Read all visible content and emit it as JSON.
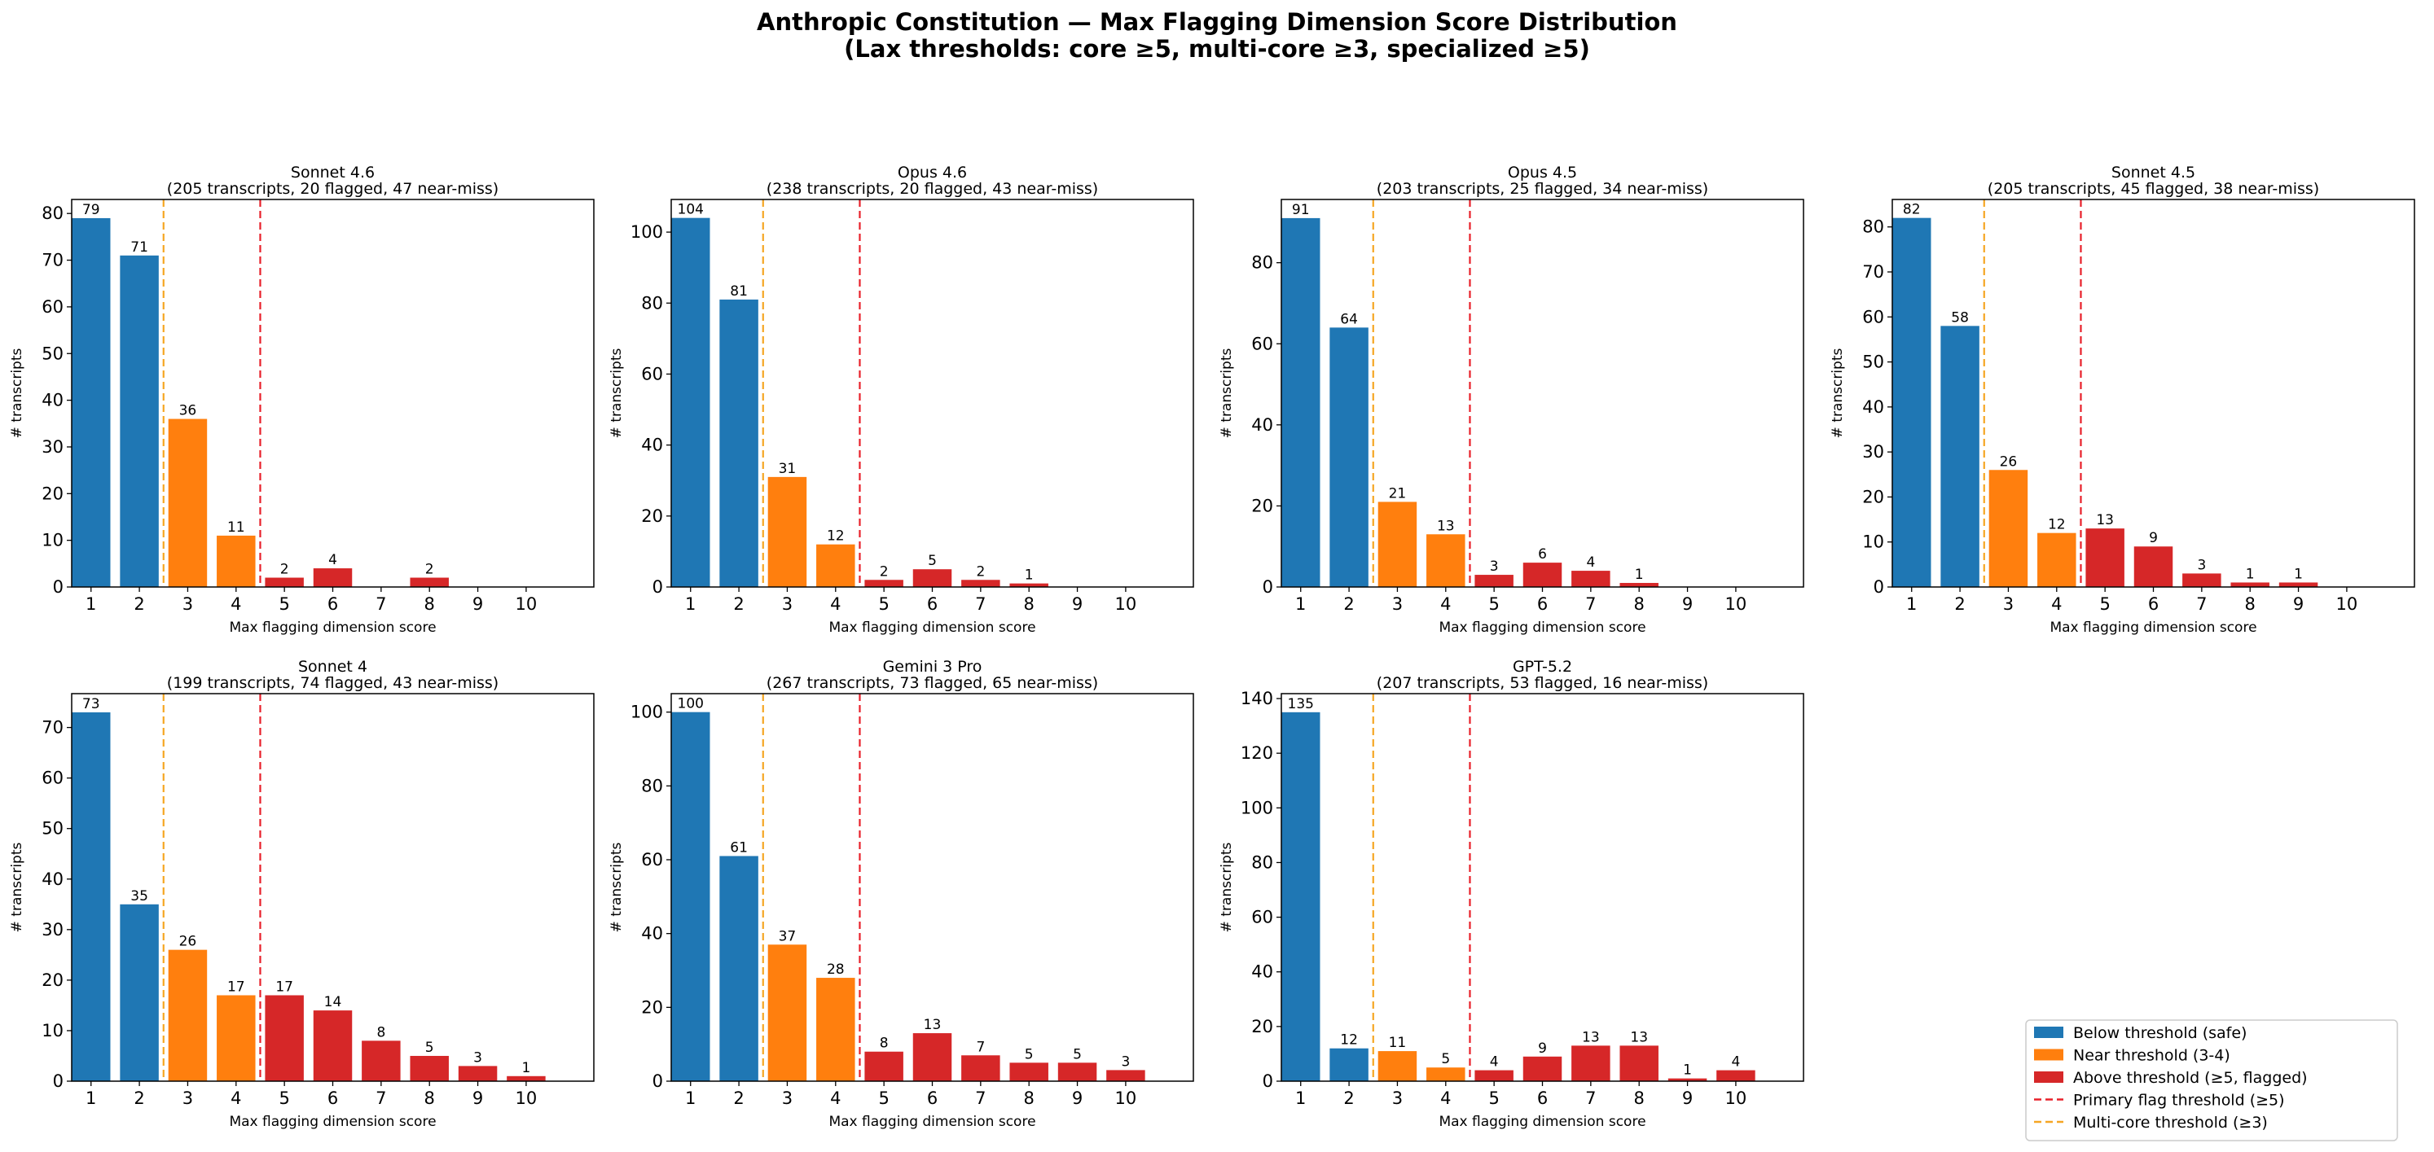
{
  "figure": {
    "title_line1": "Anthropic Constitution — Max Flagging Dimension Score Distribution",
    "title_line2": "(Lax thresholds: core ≥5, multi-core ≥3, specialized ≥5)"
  },
  "colors": {
    "safe": "#1f77b4",
    "near": "#ff7f0e",
    "flagged": "#d62728",
    "primary_line": "#e8202a",
    "multicore_line": "#f5a623"
  },
  "legend": {
    "items": [
      {
        "label": "Below threshold (safe)",
        "kind": "patch",
        "color_key": "safe"
      },
      {
        "label": "Near threshold (3-4)",
        "kind": "patch",
        "color_key": "near"
      },
      {
        "label": "Above threshold (≥5, flagged)",
        "kind": "patch",
        "color_key": "flagged"
      },
      {
        "label": "Primary flag threshold (≥5)",
        "kind": "line",
        "color_key": "primary_line"
      },
      {
        "label": "Multi-core threshold (≥3)",
        "kind": "line",
        "color_key": "multicore_line"
      }
    ]
  },
  "chart_data": [
    {
      "type": "bar",
      "title": "Sonnet 4.6",
      "subtitle": "(205 transcripts, 20 flagged, 47 near-miss)",
      "xlabel": "Max flagging dimension score",
      "ylabel": "# transcripts",
      "categories": [
        "1",
        "2",
        "3",
        "4",
        "5",
        "6",
        "7",
        "8",
        "9",
        "10"
      ],
      "values": [
        79,
        71,
        36,
        11,
        2,
        4,
        0,
        2,
        0,
        0
      ],
      "ylim": [
        0,
        83
      ],
      "yticks": [
        0,
        10,
        20,
        30,
        40,
        50,
        60,
        70,
        80
      ],
      "thresholds": {
        "multi_core": 3,
        "primary": 5
      }
    },
    {
      "type": "bar",
      "title": "Opus 4.6",
      "subtitle": "(238 transcripts, 20 flagged, 43 near-miss)",
      "xlabel": "Max flagging dimension score",
      "ylabel": "# transcripts",
      "categories": [
        "1",
        "2",
        "3",
        "4",
        "5",
        "6",
        "7",
        "8",
        "9",
        "10"
      ],
      "values": [
        104,
        81,
        31,
        12,
        2,
        5,
        2,
        1,
        0,
        0
      ],
      "ylim": [
        0,
        109.2
      ],
      "yticks": [
        0,
        20,
        40,
        60,
        80,
        100
      ],
      "thresholds": {
        "multi_core": 3,
        "primary": 5
      }
    },
    {
      "type": "bar",
      "title": "Opus 4.5",
      "subtitle": "(203 transcripts, 25 flagged, 34 near-miss)",
      "xlabel": "Max flagging dimension score",
      "ylabel": "# transcripts",
      "categories": [
        "1",
        "2",
        "3",
        "4",
        "5",
        "6",
        "7",
        "8",
        "9",
        "10"
      ],
      "values": [
        91,
        64,
        21,
        13,
        3,
        6,
        4,
        1,
        0,
        0
      ],
      "ylim": [
        0,
        95.6
      ],
      "yticks": [
        0,
        20,
        40,
        60,
        80
      ],
      "thresholds": {
        "multi_core": 3,
        "primary": 5
      }
    },
    {
      "type": "bar",
      "title": "Sonnet 4.5",
      "subtitle": "(205 transcripts, 45 flagged, 38 near-miss)",
      "xlabel": "Max flagging dimension score",
      "ylabel": "# transcripts",
      "categories": [
        "1",
        "2",
        "3",
        "4",
        "5",
        "6",
        "7",
        "8",
        "9",
        "10"
      ],
      "values": [
        82,
        58,
        26,
        12,
        13,
        9,
        3,
        1,
        1,
        0
      ],
      "ylim": [
        0,
        86.1
      ],
      "yticks": [
        0,
        10,
        20,
        30,
        40,
        50,
        60,
        70,
        80
      ],
      "thresholds": {
        "multi_core": 3,
        "primary": 5
      }
    },
    {
      "type": "bar",
      "title": "Sonnet 4",
      "subtitle": "(199 transcripts, 74 flagged, 43 near-miss)",
      "xlabel": "Max flagging dimension score",
      "ylabel": "# transcripts",
      "categories": [
        "1",
        "2",
        "3",
        "4",
        "5",
        "6",
        "7",
        "8",
        "9",
        "10"
      ],
      "values": [
        73,
        35,
        26,
        17,
        17,
        14,
        8,
        5,
        3,
        1
      ],
      "ylim": [
        0,
        76.7
      ],
      "yticks": [
        0,
        10,
        20,
        30,
        40,
        50,
        60,
        70
      ],
      "thresholds": {
        "multi_core": 3,
        "primary": 5
      }
    },
    {
      "type": "bar",
      "title": "Gemini 3 Pro",
      "subtitle": "(267 transcripts, 73 flagged, 65 near-miss)",
      "xlabel": "Max flagging dimension score",
      "ylabel": "# transcripts",
      "categories": [
        "1",
        "2",
        "3",
        "4",
        "5",
        "6",
        "7",
        "8",
        "9",
        "10"
      ],
      "values": [
        100,
        61,
        37,
        28,
        8,
        13,
        7,
        5,
        5,
        3
      ],
      "ylim": [
        0,
        105
      ],
      "yticks": [
        0,
        20,
        40,
        60,
        80,
        100
      ],
      "thresholds": {
        "multi_core": 3,
        "primary": 5
      }
    },
    {
      "type": "bar",
      "title": "GPT-5.2",
      "subtitle": "(207 transcripts, 53 flagged, 16 near-miss)",
      "xlabel": "Max flagging dimension score",
      "ylabel": "# transcripts",
      "categories": [
        "1",
        "2",
        "3",
        "4",
        "5",
        "6",
        "7",
        "8",
        "9",
        "10"
      ],
      "values": [
        135,
        12,
        11,
        5,
        4,
        9,
        13,
        13,
        1,
        4
      ],
      "ylim": [
        0,
        141.8
      ],
      "yticks": [
        0,
        20,
        40,
        60,
        80,
        100,
        120,
        140
      ],
      "thresholds": {
        "multi_core": 3,
        "primary": 5
      }
    }
  ]
}
